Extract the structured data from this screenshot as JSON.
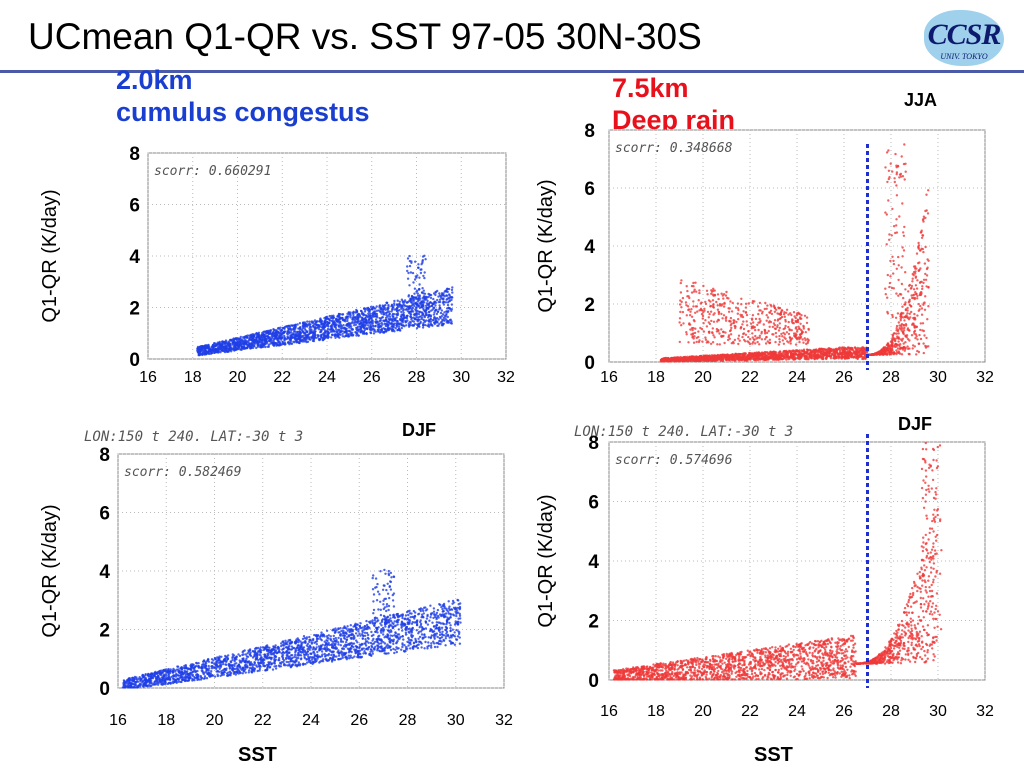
{
  "slide_title": "UCmean Q1-QR vs. SST 97-05 30N-30S",
  "logo": {
    "name": "CCSR",
    "sub": "UNIV. TOKYO"
  },
  "left_heading": {
    "line1": "2.0km",
    "line2": "cumulus congestus"
  },
  "right_heading": {
    "line1": "7.5km",
    "line2": "Deep rain"
  },
  "season_labels": {
    "top_right": "JJA",
    "bottom_left": "DJF",
    "bottom_right": "DJF"
  },
  "header_text": {
    "bottom_left": "LON:150 t 240. LAT:-30 t 3",
    "bottom_right": "LON:150 t 240. LAT:-30 t 3"
  },
  "x_title": "SST",
  "chart_data": [
    {
      "id": "top-left",
      "type": "scatter",
      "color": "#1f3fe6",
      "scorr": "scorr: 0.660291",
      "xlabel": "",
      "ylabel": "Q1-QR (K/day)",
      "xlim": [
        16,
        32
      ],
      "ylim": [
        0,
        8
      ],
      "xticks": [
        "16",
        "18",
        "20",
        "22",
        "24",
        "26",
        "28",
        "30",
        "32"
      ],
      "yticks": [
        "0",
        "2",
        "4",
        "6",
        "8"
      ],
      "x_range": [
        18.2,
        29.6
      ],
      "trend": [
        [
          18.2,
          0.25
        ],
        [
          29.6,
          1.85
        ]
      ],
      "spread": 0.55,
      "spike": {
        "x": 28.0,
        "top": 4.05
      },
      "threshold_sst": null
    },
    {
      "id": "top-right",
      "type": "scatter",
      "color": "#ef3a3a",
      "scorr": "scorr: 0.348668",
      "xlabel": "",
      "ylabel": "Q1-QR (K/day)",
      "xlim": [
        16,
        32
      ],
      "ylim": [
        0,
        8
      ],
      "xticks": [
        "16",
        "18",
        "20",
        "22",
        "24",
        "26",
        "28",
        "30",
        "32"
      ],
      "yticks": [
        "0",
        "2",
        "4",
        "6",
        "8"
      ],
      "x_range": [
        18.2,
        29.6
      ],
      "trend": [
        [
          18.2,
          0.05
        ],
        [
          26.0,
          0.25
        ]
      ],
      "spread": 0.2,
      "cluster": {
        "x": [
          19.0,
          24.5
        ],
        "y": [
          0.6,
          2.9
        ]
      },
      "rise_from": 27.0,
      "rise_top": 7.5,
      "spike": {
        "x": 28.2,
        "top": 7.5
      },
      "threshold_sst": 27.0
    },
    {
      "id": "bottom-left",
      "type": "scatter",
      "color": "#1f3fe6",
      "scorr": "scorr: 0.582469",
      "xlabel": "SST",
      "ylabel": "Q1-QR (K/day)",
      "xlim": [
        16,
        32
      ],
      "ylim": [
        0,
        8
      ],
      "xticks": [
        "16",
        "18",
        "20",
        "22",
        "24",
        "26",
        "28",
        "30",
        "32"
      ],
      "yticks": [
        "0",
        "2",
        "4",
        "6",
        "8"
      ],
      "x_range": [
        16.2,
        30.2
      ],
      "trend": [
        [
          16.2,
          0.05
        ],
        [
          30.2,
          2.05
        ]
      ],
      "spread": 0.6,
      "spike": {
        "x": 27.0,
        "top": 4.1
      },
      "threshold_sst": null
    },
    {
      "id": "bottom-right",
      "type": "scatter",
      "color": "#ef3a3a",
      "scorr": "scorr: 0.574696",
      "xlabel": "SST",
      "ylabel": "Q1-QR (K/day)",
      "xlim": [
        16,
        32
      ],
      "ylim": [
        0,
        8
      ],
      "xticks": [
        "16",
        "18",
        "20",
        "22",
        "24",
        "26",
        "28",
        "30",
        "32"
      ],
      "yticks": [
        "0",
        "2",
        "4",
        "6",
        "8"
      ],
      "x_range": [
        16.2,
        30.0
      ],
      "trend": [
        [
          16.2,
          0.05
        ],
        [
          26.0,
          0.55
        ]
      ],
      "spread": 0.7,
      "rise_from": 26.5,
      "rise_top": 8.0,
      "spike": {
        "x": 29.7,
        "top": 8.0
      },
      "threshold_sst": 27.0
    }
  ]
}
